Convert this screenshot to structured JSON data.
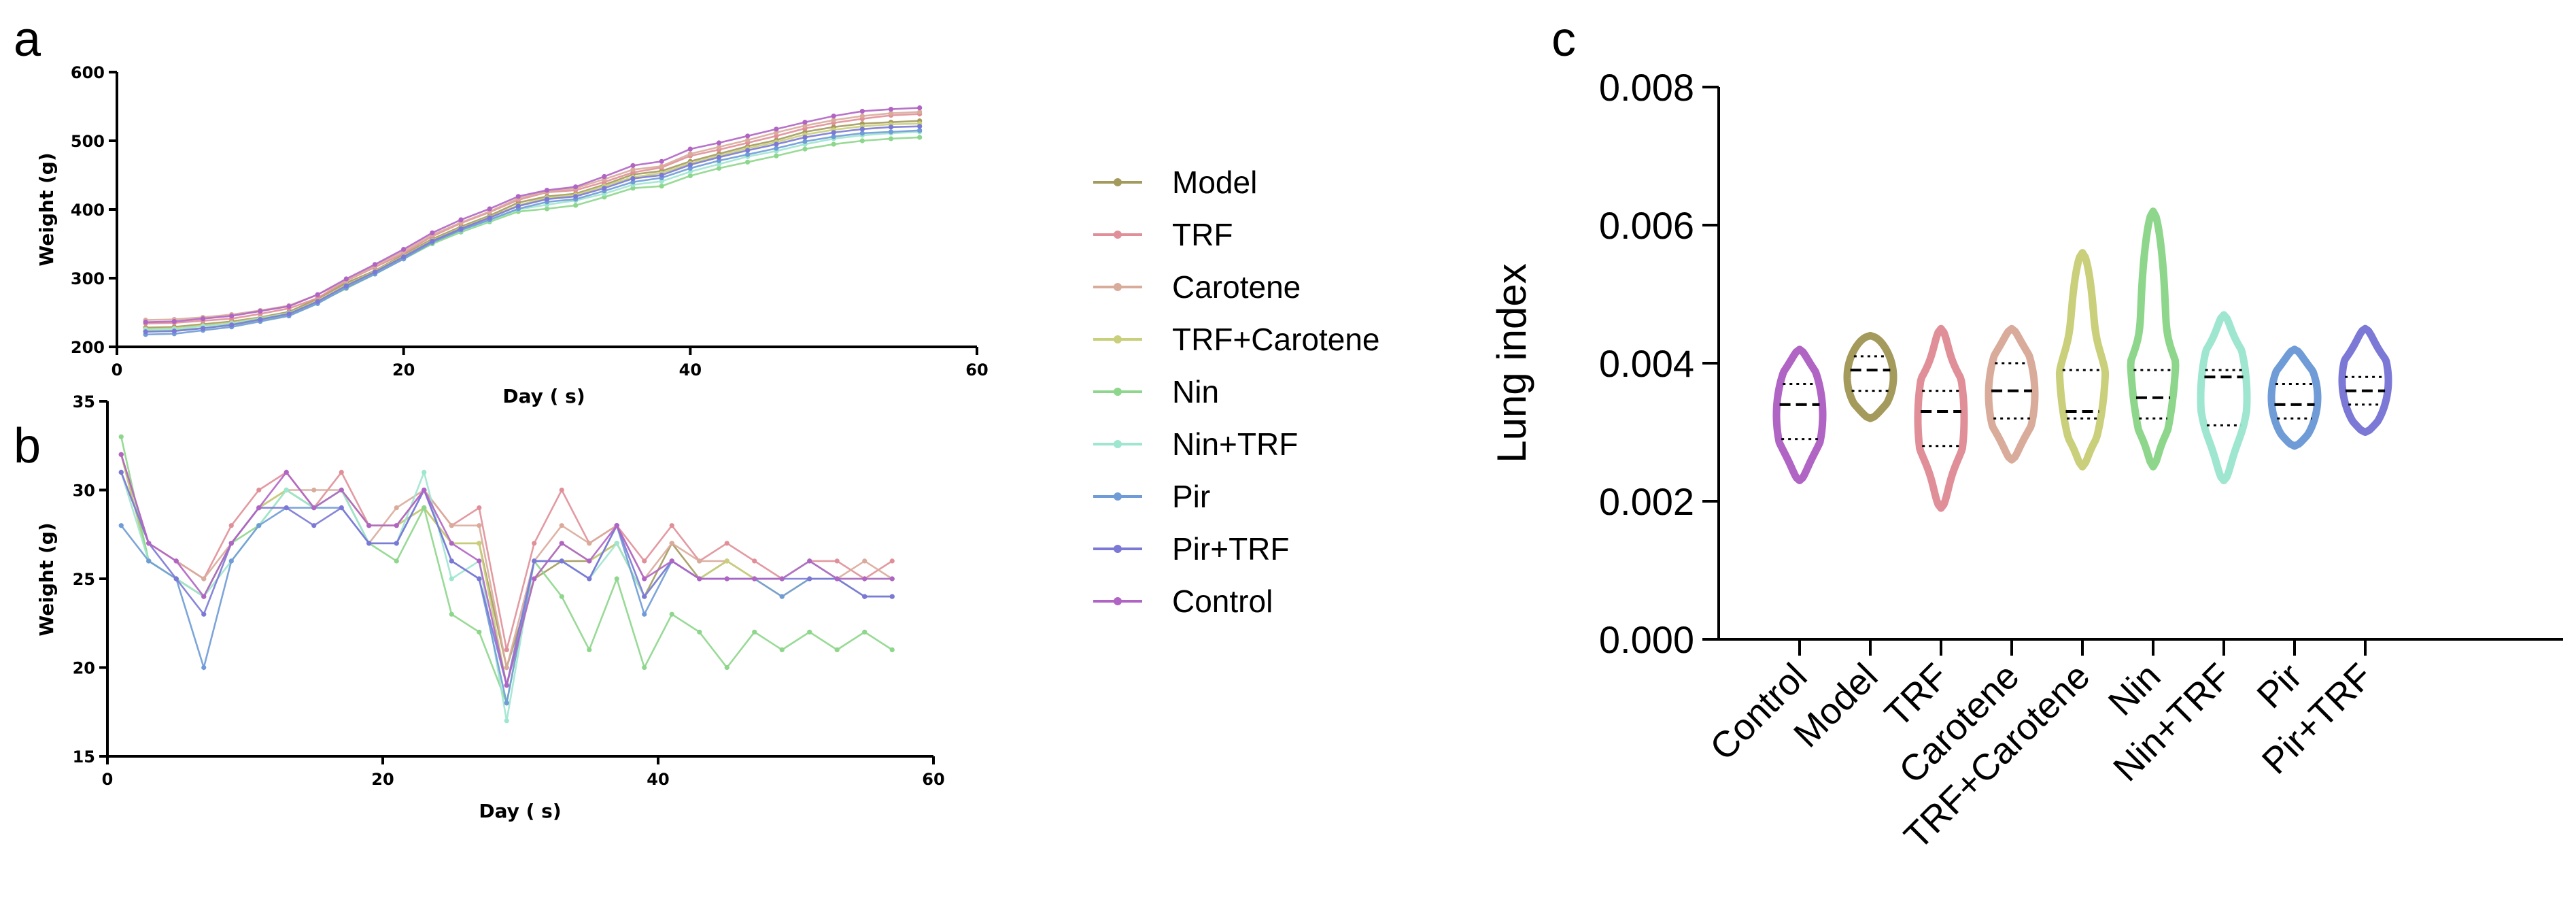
{
  "panels": {
    "a": "a",
    "b": "b",
    "c": "c"
  },
  "palette": {
    "Model": "#a39a5c",
    "TRF": "#e08f98",
    "Carotene": "#d9ab9b",
    "TRF+Carotene": "#c9cf7a",
    "Nin": "#8dd68b",
    "Nin+TRF": "#9ee6cf",
    "Pir": "#6f9bd6",
    "Pir+TRF": "#7b78d6",
    "Control": "#b064c4"
  },
  "legend": {
    "items": [
      "Model",
      "TRF",
      "Carotene",
      "TRF+Carotene",
      "Nin",
      "Nin+TRF",
      "Pir",
      "Pir+TRF",
      "Control"
    ]
  },
  "chart_data": [
    {
      "id": "a",
      "type": "line",
      "title": "",
      "xlabel": "Day ( s)",
      "ylabel": "Weight (g)",
      "xlim": [
        0,
        60
      ],
      "ylim": [
        200,
        600
      ],
      "xticks": [
        0,
        20,
        40,
        60
      ],
      "yticks": [
        200,
        300,
        400,
        500,
        600
      ],
      "x": [
        2,
        4,
        6,
        8,
        10,
        12,
        14,
        16,
        18,
        20,
        22,
        24,
        26,
        28,
        30,
        32,
        34,
        36,
        38,
        40,
        42,
        44,
        46,
        48,
        50,
        52,
        54,
        56
      ],
      "series": [
        {
          "name": "Model",
          "values": [
            228,
            229,
            233,
            237,
            243,
            251,
            270,
            293,
            311,
            334,
            357,
            375,
            391,
            410,
            419,
            423,
            436,
            451,
            456,
            470,
            481,
            492,
            501,
            513,
            520,
            525,
            527,
            529
          ]
        },
        {
          "name": "TRF",
          "values": [
            234,
            235,
            238,
            241,
            248,
            256,
            271,
            296,
            316,
            336,
            361,
            380,
            396,
            414,
            425,
            428,
            440,
            454,
            461,
            478,
            487,
            497,
            507,
            518,
            526,
            532,
            537,
            539
          ]
        },
        {
          "name": "Carotene",
          "values": [
            239,
            240,
            243,
            247,
            253,
            260,
            276,
            296,
            318,
            339,
            363,
            381,
            397,
            416,
            426,
            431,
            444,
            458,
            463,
            481,
            491,
            501,
            512,
            522,
            530,
            536,
            540,
            542
          ]
        },
        {
          "name": "TRF+Carotene",
          "values": [
            226,
            227,
            231,
            235,
            242,
            249,
            267,
            290,
            310,
            332,
            355,
            373,
            389,
            406,
            417,
            421,
            434,
            447,
            453,
            467,
            478,
            489,
            498,
            509,
            516,
            521,
            524,
            525
          ]
        },
        {
          "name": "Nin",
          "values": [
            223,
            224,
            227,
            232,
            239,
            246,
            264,
            285,
            306,
            328,
            350,
            367,
            382,
            397,
            401,
            406,
            418,
            431,
            434,
            449,
            460,
            469,
            478,
            488,
            495,
            500,
            503,
            505
          ]
        },
        {
          "name": "Nin+TRF",
          "values": [
            225,
            226,
            230,
            234,
            241,
            249,
            265,
            287,
            308,
            330,
            353,
            369,
            384,
            400,
            407,
            413,
            423,
            436,
            441,
            455,
            466,
            477,
            485,
            495,
            503,
            508,
            511,
            513
          ]
        },
        {
          "name": "Pir",
          "values": [
            218,
            219,
            224,
            229,
            237,
            245,
            263,
            286,
            306,
            328,
            352,
            370,
            385,
            401,
            411,
            415,
            427,
            440,
            446,
            460,
            471,
            480,
            489,
            499,
            506,
            511,
            513,
            515
          ]
        },
        {
          "name": "Pir+TRF",
          "values": [
            222,
            223,
            227,
            232,
            240,
            248,
            266,
            289,
            309,
            331,
            354,
            372,
            388,
            405,
            415,
            419,
            431,
            445,
            450,
            465,
            476,
            486,
            495,
            505,
            512,
            517,
            520,
            521
          ]
        },
        {
          "name": "Control",
          "values": [
            236,
            237,
            241,
            245,
            252,
            259,
            276,
            299,
            320,
            342,
            366,
            385,
            401,
            419,
            428,
            433,
            448,
            464,
            470,
            488,
            497,
            507,
            517,
            527,
            536,
            543,
            546,
            548
          ]
        }
      ]
    },
    {
      "id": "b",
      "type": "line",
      "title": "",
      "xlabel": "Day ( s)",
      "ylabel": "Weight (g)",
      "xlim": [
        0,
        60
      ],
      "ylim": [
        15,
        35
      ],
      "xticks": [
        0,
        20,
        40,
        60
      ],
      "yticks": [
        15,
        20,
        25,
        30,
        35
      ],
      "x": [
        1,
        3,
        5,
        7,
        9,
        11,
        13,
        15,
        17,
        19,
        21,
        23,
        25,
        27,
        29,
        31,
        33,
        35,
        37,
        39,
        41,
        43,
        45,
        47,
        49,
        51,
        53,
        55,
        57
      ],
      "series": [
        {
          "name": "Model",
          "values": [
            32,
            26,
            25,
            24,
            27,
            29,
            30,
            29,
            30,
            28,
            28,
            29,
            27,
            27,
            20,
            25,
            26,
            26,
            27,
            24,
            27,
            25,
            26,
            25,
            25,
            26,
            25,
            25,
            25
          ]
        },
        {
          "name": "TRF",
          "values": [
            32,
            27,
            26,
            25,
            28,
            30,
            31,
            29,
            31,
            28,
            28,
            30,
            28,
            29,
            21,
            27,
            30,
            27,
            28,
            26,
            28,
            26,
            27,
            26,
            25,
            26,
            26,
            25,
            26
          ]
        },
        {
          "name": "Carotene",
          "values": [
            31,
            27,
            26,
            25,
            27,
            29,
            30,
            30,
            30,
            27,
            29,
            30,
            28,
            28,
            20,
            26,
            28,
            27,
            28,
            25,
            27,
            26,
            26,
            25,
            25,
            26,
            25,
            26,
            25
          ]
        },
        {
          "name": "TRF+Carotene",
          "values": [
            32,
            26,
            25,
            24,
            27,
            29,
            30,
            29,
            30,
            28,
            28,
            29,
            27,
            27,
            19,
            25,
            27,
            26,
            27,
            24,
            26,
            25,
            26,
            25,
            24,
            25,
            25,
            24,
            24
          ]
        },
        {
          "name": "Nin",
          "values": [
            33,
            26,
            25,
            24,
            27,
            28,
            30,
            29,
            30,
            27,
            26,
            29,
            23,
            22,
            18,
            26,
            24,
            21,
            25,
            20,
            23,
            22,
            20,
            22,
            21,
            22,
            21,
            22,
            21
          ]
        },
        {
          "name": "Nin+TRF",
          "values": [
            31,
            26,
            25,
            24,
            26,
            28,
            30,
            29,
            30,
            27,
            27,
            31,
            25,
            26,
            17,
            26,
            26,
            25,
            27,
            24,
            26,
            25,
            25,
            25,
            25,
            26,
            25,
            25,
            25
          ]
        },
        {
          "name": "Pir",
          "values": [
            28,
            26,
            25,
            20,
            26,
            28,
            29,
            29,
            29,
            27,
            27,
            30,
            26,
            25,
            18,
            26,
            26,
            25,
            28,
            23,
            26,
            25,
            25,
            25,
            24,
            25,
            25,
            24,
            24
          ]
        },
        {
          "name": "Pir+TRF",
          "values": [
            31,
            27,
            25,
            23,
            27,
            29,
            29,
            28,
            29,
            27,
            27,
            30,
            26,
            25,
            19,
            26,
            26,
            25,
            28,
            24,
            26,
            25,
            25,
            25,
            25,
            25,
            25,
            24,
            24
          ]
        },
        {
          "name": "Control",
          "values": [
            32,
            27,
            26,
            24,
            27,
            29,
            31,
            29,
            30,
            28,
            28,
            30,
            27,
            26,
            19,
            25,
            27,
            26,
            28,
            25,
            26,
            25,
            25,
            25,
            25,
            26,
            25,
            25,
            25
          ]
        }
      ]
    },
    {
      "id": "c",
      "type": "violin",
      "title": "",
      "xlabel": "",
      "ylabel": "Lung index",
      "ylim": [
        0,
        0.008
      ],
      "yticks": [
        "0.000",
        "0.002",
        "0.004",
        "0.006",
        "0.008"
      ],
      "categories": [
        "Control",
        "Model",
        "TRF",
        "Carotene",
        "TRF+Carotene",
        "Nin",
        "Nin+TRF",
        "Pir",
        "Pir+TRF"
      ],
      "series": [
        {
          "name": "Control",
          "min": 0.0023,
          "max": 0.0042,
          "q1": 0.0029,
          "median": 0.0034,
          "q3": 0.0037
        },
        {
          "name": "Model",
          "min": 0.0032,
          "max": 0.0044,
          "q1": 0.0036,
          "median": 0.0039,
          "q3": 0.0041
        },
        {
          "name": "TRF",
          "min": 0.0019,
          "max": 0.0045,
          "q1": 0.0028,
          "median": 0.0033,
          "q3": 0.0036
        },
        {
          "name": "Carotene",
          "min": 0.0026,
          "max": 0.0045,
          "q1": 0.0032,
          "median": 0.0036,
          "q3": 0.004
        },
        {
          "name": "TRF+Carotene",
          "min": 0.0025,
          "max": 0.0056,
          "q1": 0.0032,
          "median": 0.0033,
          "q3": 0.0039
        },
        {
          "name": "Nin",
          "min": 0.0025,
          "max": 0.0062,
          "q1": 0.0032,
          "median": 0.0035,
          "q3": 0.0039
        },
        {
          "name": "Nin+TRF",
          "min": 0.0023,
          "max": 0.0047,
          "q1": 0.0031,
          "median": 0.0038,
          "q3": 0.0039
        },
        {
          "name": "Pir",
          "min": 0.0028,
          "max": 0.0042,
          "q1": 0.0032,
          "median": 0.0034,
          "q3": 0.0037
        },
        {
          "name": "Pir+TRF",
          "min": 0.003,
          "max": 0.0045,
          "q1": 0.0034,
          "median": 0.0036,
          "q3": 0.0038
        }
      ]
    }
  ]
}
